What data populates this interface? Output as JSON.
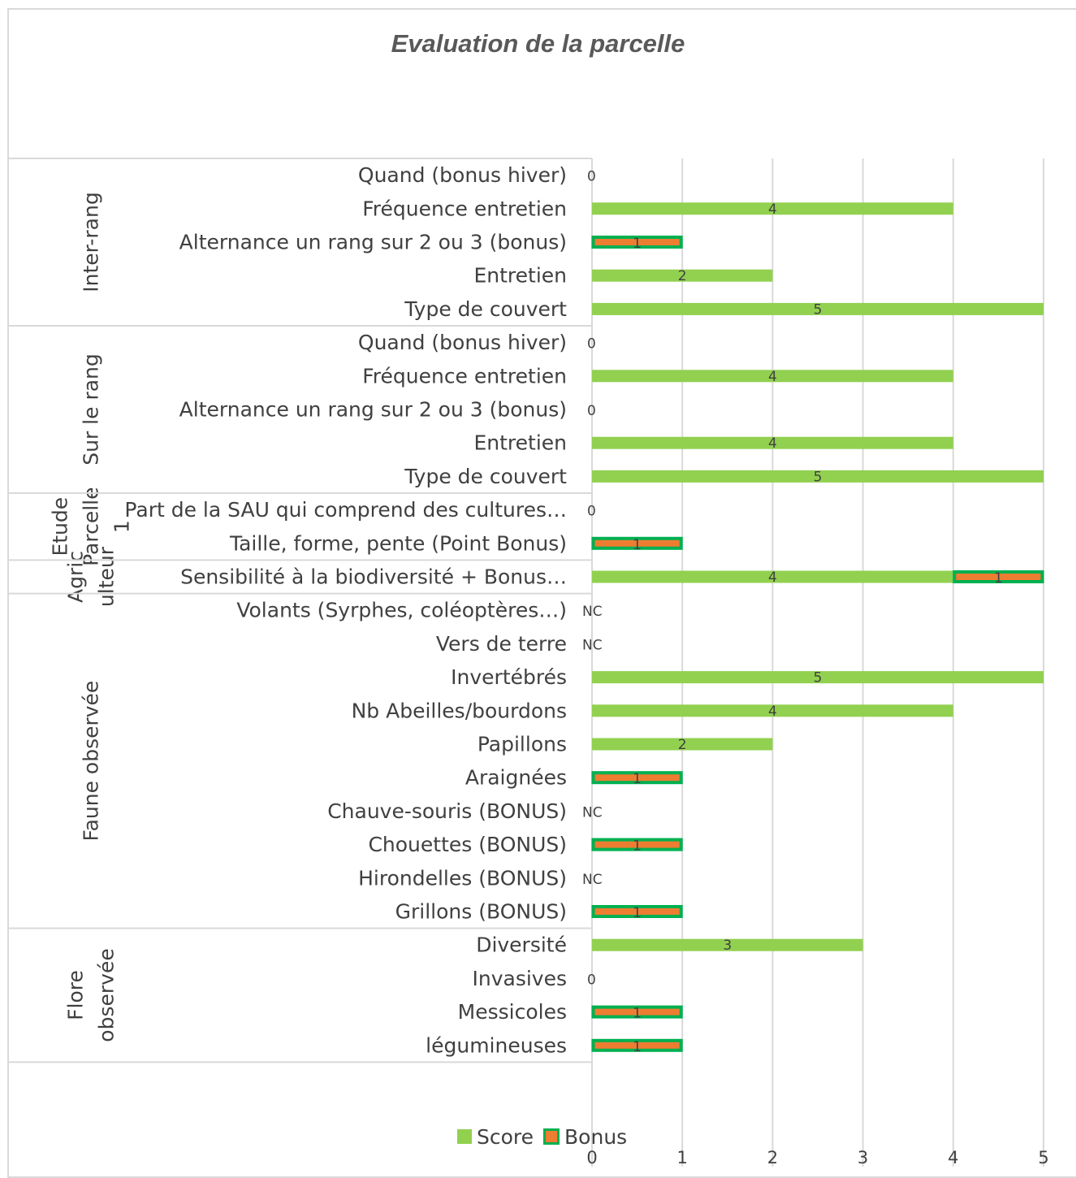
{
  "chart_data": {
    "type": "bar",
    "orientation": "horizontal",
    "stacked": true,
    "title": "Evaluation de la parcelle",
    "xlim": [
      0,
      5
    ],
    "x_ticks": [
      "0",
      "1",
      "2",
      "3",
      "4",
      "5"
    ],
    "grid": true,
    "legend_position": "bottom",
    "colors": {
      "score": "#92d050",
      "bonus_fill": "#ed7d31",
      "bonus_border": "#00b050"
    },
    "legend": [
      "Score",
      "Bonus"
    ],
    "groups": [
      {
        "name": "Inter-rang",
        "label_lines": [
          "Inter-rang"
        ],
        "items": [
          {
            "label": "Quand (bonus hiver)",
            "score": 0,
            "bonus": 0,
            "display": "0"
          },
          {
            "label": "Fréquence entretien",
            "score": 4,
            "bonus": 0,
            "display": "4"
          },
          {
            "label": "Alternance un rang sur 2 ou 3 (bonus)",
            "score": 0,
            "bonus": 1,
            "display": "1"
          },
          {
            "label": "Entretien",
            "score": 2,
            "bonus": 0,
            "display": "2"
          },
          {
            "label": "Type de couvert",
            "score": 5,
            "bonus": 0,
            "display": "5"
          }
        ]
      },
      {
        "name": "Sur le rang",
        "label_lines": [
          "Sur le rang"
        ],
        "items": [
          {
            "label": "Quand (bonus hiver)",
            "score": 0,
            "bonus": 0,
            "display": "0"
          },
          {
            "label": "Fréquence entretien",
            "score": 4,
            "bonus": 0,
            "display": "4"
          },
          {
            "label": "Alternance un rang sur 2 ou 3 (bonus)",
            "score": 0,
            "bonus": 0,
            "display": "0"
          },
          {
            "label": "Entretien",
            "score": 4,
            "bonus": 0,
            "display": "4"
          },
          {
            "label": "Type de couvert",
            "score": 5,
            "bonus": 0,
            "display": "5"
          }
        ]
      },
      {
        "name": "Etude Parcelle 1",
        "label_lines": [
          "Etude",
          "Parcelle",
          "1"
        ],
        "items": [
          {
            "label": "Part de la SAU qui comprend des cultures…",
            "score": 0,
            "bonus": 0,
            "display": "0"
          },
          {
            "label": "Taille, forme, pente (Point Bonus)",
            "score": 0,
            "bonus": 1,
            "display": "1"
          }
        ]
      },
      {
        "name": "Agriculteur",
        "label_lines": [
          "Agric",
          "ulteur"
        ],
        "items": [
          {
            "label": "Sensibilité à la biodiversité + Bonus…",
            "score": 4,
            "bonus": 1,
            "display": "4",
            "bonus_display": "1"
          }
        ]
      },
      {
        "name": "Faune observée",
        "label_lines": [
          "Faune observée"
        ],
        "items": [
          {
            "label": "Volants (Syrphes, coléoptères…)",
            "score": null,
            "bonus": null,
            "display": "NC"
          },
          {
            "label": "Vers de terre",
            "score": null,
            "bonus": null,
            "display": "NC"
          },
          {
            "label": "Invertébrés",
            "score": 5,
            "bonus": 0,
            "display": "5"
          },
          {
            "label": "Nb Abeilles/bourdons",
            "score": 4,
            "bonus": 0,
            "display": "4"
          },
          {
            "label": "Papillons",
            "score": 2,
            "bonus": 0,
            "display": "2"
          },
          {
            "label": "Araignées",
            "score": 0,
            "bonus": 1,
            "display": "1"
          },
          {
            "label": "Chauve-souris (BONUS)",
            "score": null,
            "bonus": null,
            "display": "NC"
          },
          {
            "label": "Chouettes (BONUS)",
            "score": 0,
            "bonus": 1,
            "display": "1"
          },
          {
            "label": "Hirondelles (BONUS)",
            "score": null,
            "bonus": null,
            "display": "NC"
          },
          {
            "label": "Grillons (BONUS)",
            "score": 0,
            "bonus": 1,
            "display": "1"
          }
        ]
      },
      {
        "name": "Flore observée",
        "label_lines": [
          "Flore",
          "observée"
        ],
        "items": [
          {
            "label": "Diversité",
            "score": 3,
            "bonus": 0,
            "display": "3"
          },
          {
            "label": "Invasives",
            "score": 0,
            "bonus": 0,
            "display": "0"
          },
          {
            "label": "Messicoles",
            "score": 0,
            "bonus": 1,
            "display": "1"
          },
          {
            "label": "légumineuses",
            "score": 0,
            "bonus": 1,
            "display": "1"
          }
        ]
      }
    ]
  }
}
